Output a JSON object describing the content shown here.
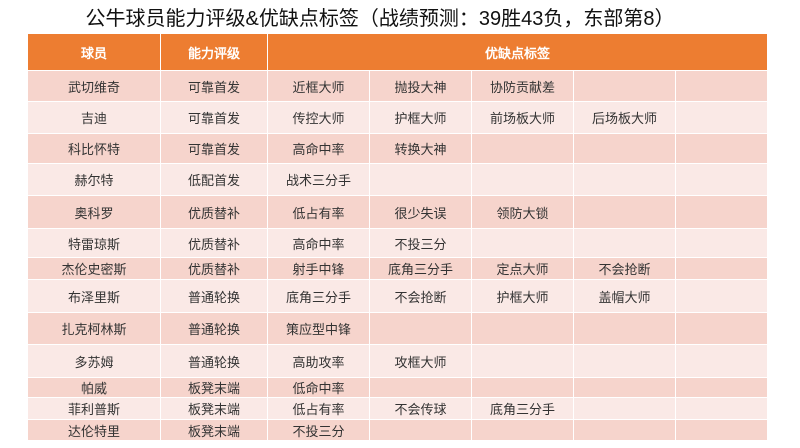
{
  "title": "公牛球员能力评级&优缺点标签（战绩预测：39胜43负，东部第8）",
  "headers": [
    "球员",
    "能力评级",
    "优缺点标签"
  ],
  "rows": [
    {
      "player": "武切维奇",
      "rating": "可靠首发",
      "tags": [
        "近框大师",
        "抛投大神",
        "协防贡献差",
        "",
        ""
      ]
    },
    {
      "player": "吉迪",
      "rating": "可靠首发",
      "tags": [
        "传控大师",
        "护框大师",
        "前场板大师",
        "后场板大师",
        ""
      ]
    },
    {
      "player": "科比怀特",
      "rating": "可靠首发",
      "tags": [
        "高命中率",
        "转换大神",
        "",
        "",
        ""
      ]
    },
    {
      "player": "赫尔特",
      "rating": "低配首发",
      "tags": [
        "战术三分手",
        "",
        "",
        "",
        ""
      ]
    },
    {
      "player": "奥科罗",
      "rating": "优质替补",
      "tags": [
        "低占有率",
        "很少失误",
        "领防大锁",
        "",
        ""
      ]
    },
    {
      "player": "特雷琼斯",
      "rating": "优质替补",
      "tags": [
        "高命中率",
        "不投三分",
        "",
        "",
        ""
      ]
    },
    {
      "player": "杰伦史密斯",
      "rating": "优质替补",
      "tags": [
        "射手中锋",
        "底角三分手",
        "定点大师",
        "不会抢断",
        ""
      ]
    },
    {
      "player": "布泽里斯",
      "rating": "普通轮换",
      "tags": [
        "底角三分手",
        "不会抢断",
        "护框大师",
        "盖帽大师",
        ""
      ]
    },
    {
      "player": "扎克柯林斯",
      "rating": "普通轮换",
      "tags": [
        "策应型中锋",
        "",
        "",
        "",
        ""
      ]
    },
    {
      "player": "多苏姆",
      "rating": "普通轮换",
      "tags": [
        "高助攻率",
        "攻框大师",
        "",
        "",
        ""
      ]
    },
    {
      "player": "帕威",
      "rating": "板凳末端",
      "tags": [
        "低命中率",
        "",
        "",
        "",
        ""
      ]
    },
    {
      "player": "菲利普斯",
      "rating": "板凳末端",
      "tags": [
        "低占有率",
        "不会传球",
        "底角三分手",
        "",
        ""
      ]
    },
    {
      "player": "达伦特里",
      "rating": "板凳末端",
      "tags": [
        "不投三分",
        "",
        "",
        "",
        ""
      ]
    }
  ],
  "colors": {
    "header": "#ed7d31",
    "row_odd": "#f6d4cc",
    "row_even": "#fae9e6"
  }
}
